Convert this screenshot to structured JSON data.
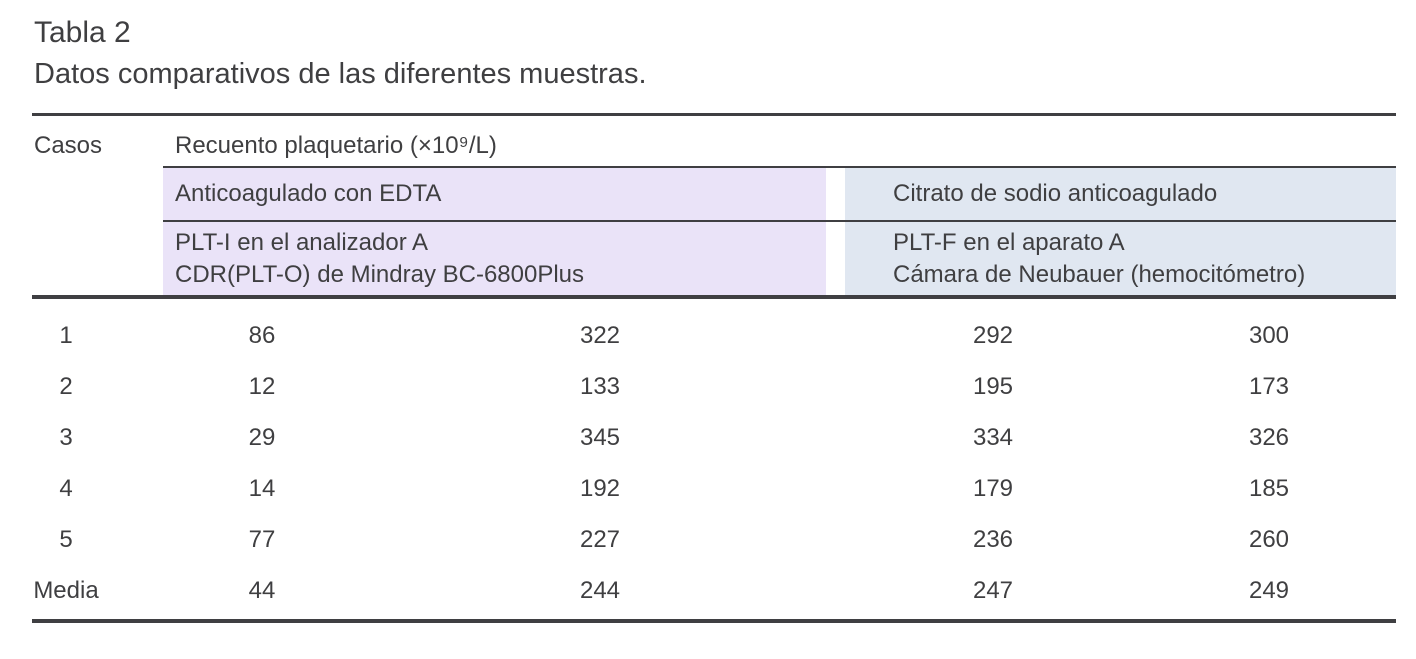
{
  "title": "Tabla 2",
  "subtitle": "Datos comparativos de las diferentes muestras.",
  "colors": {
    "edta_bg": "#eae3f8",
    "citrate_bg": "#e0e7f1",
    "rule": "#3f3f42",
    "text": "#3f3f41"
  },
  "table": {
    "col_casos": "Casos",
    "spanning_header": "Recuento plaquetario (×10⁹/L)",
    "groups": [
      {
        "name": "Anticoagulado con EDTA",
        "method_line1": "PLT-I en el analizador A",
        "method_line2": "CDR(PLT-O) de Mindray BC-6800Plus"
      },
      {
        "name": "Citrato de sodio anticoagulado",
        "method_line1": "PLT-F en el aparato A",
        "method_line2": "Cámara de Neubauer (hemocitómetro)"
      }
    ],
    "rows": [
      {
        "caso": "1",
        "values": [
          "86",
          "322",
          "292",
          "300"
        ]
      },
      {
        "caso": "2",
        "values": [
          "12",
          "133",
          "195",
          "173"
        ]
      },
      {
        "caso": "3",
        "values": [
          "29",
          "345",
          "334",
          "326"
        ]
      },
      {
        "caso": "4",
        "values": [
          "14",
          "192",
          "179",
          "185"
        ]
      },
      {
        "caso": "5",
        "values": [
          "77",
          "227",
          "236",
          "260"
        ]
      },
      {
        "caso": "Media",
        "values": [
          "44",
          "244",
          "247",
          "249"
        ]
      }
    ]
  }
}
